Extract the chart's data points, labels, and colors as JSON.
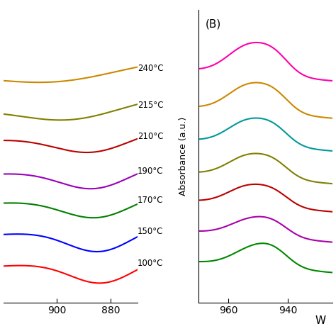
{
  "panel_A": {
    "x_min": 870,
    "x_max": 920,
    "x_ticks": [
      900,
      880
    ],
    "colors": [
      "#FF0000",
      "#0000FF",
      "#008000",
      "#9900BB",
      "#BB0000",
      "#808000",
      "#CC8800"
    ],
    "offsets": [
      0.0,
      0.13,
      0.26,
      0.38,
      0.52,
      0.65,
      0.8
    ],
    "trough_centers": [
      883,
      884,
      885,
      886,
      887,
      895,
      900
    ],
    "trough_widths": [
      12,
      12,
      13,
      13,
      14,
      18,
      22
    ],
    "trough_depths": [
      0.1,
      0.1,
      0.09,
      0.09,
      0.08,
      0.07,
      0.06
    ],
    "labels": [
      "240°C",
      "215°C",
      "210°C",
      "190°C",
      "170°C",
      "150°C",
      "100°C"
    ]
  },
  "panel_B": {
    "x_min": 925,
    "x_max": 970,
    "x_ticks": [
      960,
      940
    ],
    "colors": [
      "#FF00AA",
      "#CC8800",
      "#009999",
      "#808000",
      "#BB0000",
      "#AA00AA",
      "#008800"
    ],
    "offsets": [
      0.82,
      0.66,
      0.52,
      0.38,
      0.26,
      0.13,
      0.0
    ],
    "peak_centers": [
      953,
      953,
      953,
      953,
      953,
      952,
      951
    ],
    "peak_heights": [
      0.12,
      0.11,
      0.1,
      0.09,
      0.08,
      0.07,
      0.08
    ],
    "peak_widths": [
      7,
      7,
      7,
      7,
      7,
      7,
      7
    ],
    "shoulder_centers": [
      944,
      944,
      944,
      944,
      944,
      944,
      944
    ],
    "shoulder_heights": [
      0.06,
      0.055,
      0.05,
      0.045,
      0.04,
      0.035,
      0.04
    ],
    "shoulder_widths": [
      5,
      5,
      5,
      5,
      5,
      5,
      5
    ]
  },
  "ylabel": "Absorbance (a.u.)",
  "xlabel": "W",
  "panel_B_label": "(B)"
}
